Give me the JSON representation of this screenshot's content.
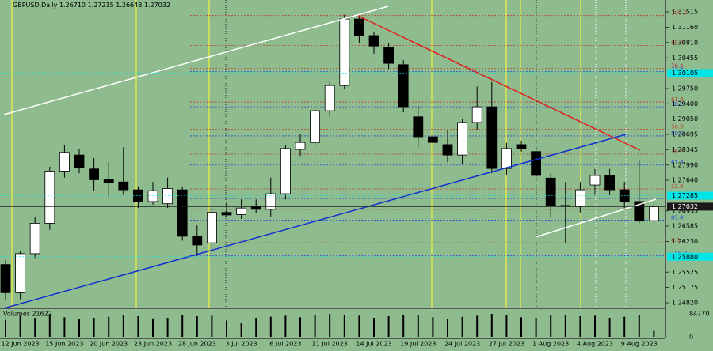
{
  "chart_data": {
    "type": "candlestick",
    "title": "GBPUSD,Daily",
    "header_ohlc": [
      "1.26710",
      "1.27215",
      "1.26648",
      "1.27032"
    ],
    "categories": [
      null,
      "12 Jun 2023",
      null,
      null,
      "15 Jun 2023",
      null,
      null,
      "20 Jun 2023",
      null,
      null,
      "23 Jun 2023",
      null,
      null,
      "28 Jun 2023",
      null,
      null,
      "3 Jul 2023",
      null,
      null,
      "6 Jul 2023",
      null,
      null,
      "11 Jul 2023",
      null,
      null,
      "14 Jul 2023",
      null,
      null,
      "19 Jul 2023",
      null,
      null,
      "24 Jul 2023",
      null,
      null,
      "27 Jul 2023",
      null,
      null,
      "1 Aug 2023",
      null,
      null,
      "4 Aug 2023",
      null,
      null,
      "9 Aug 2023",
      null
    ],
    "open": [
      1.257,
      1.2505,
      1.2595,
      1.2665,
      1.2785,
      1.2822,
      1.279,
      1.2765,
      1.276,
      1.2742,
      1.2715,
      1.271,
      1.2742,
      1.2635,
      1.262,
      1.269,
      1.2685,
      1.2705,
      1.2697,
      1.2733,
      1.2835,
      1.2851,
      1.2924,
      1.2982,
      1.3135,
      1.3097,
      1.307,
      1.303,
      1.291,
      1.2864,
      1.2846,
      1.2822,
      1.2897,
      1.2933,
      1.2791,
      1.2846,
      1.283,
      1.2769,
      1.2706,
      1.2704,
      1.2753,
      1.2775,
      1.2742,
      1.2715,
      1.2671
    ],
    "high": [
      1.258,
      1.26,
      1.268,
      1.2795,
      1.2845,
      1.2835,
      1.2815,
      1.2805,
      1.284,
      1.275,
      1.276,
      1.277,
      1.2748,
      1.266,
      1.27,
      1.2715,
      1.272,
      1.272,
      1.277,
      1.2845,
      1.287,
      1.2935,
      1.299,
      1.3145,
      1.3143,
      1.3105,
      1.308,
      1.304,
      1.2935,
      1.29,
      1.288,
      1.2905,
      1.298,
      1.299,
      1.285,
      1.2855,
      1.284,
      1.278,
      1.276,
      1.276,
      1.279,
      1.279,
      1.276,
      1.281,
      1.27215
    ],
    "low": [
      1.249,
      1.249,
      1.2585,
      1.265,
      1.277,
      1.278,
      1.274,
      1.2725,
      1.273,
      1.27,
      1.2708,
      1.27,
      1.2625,
      1.259,
      1.259,
      1.268,
      1.2675,
      1.2688,
      1.268,
      1.272,
      1.282,
      1.2835,
      1.291,
      1.2975,
      1.308,
      1.3055,
      1.302,
      1.292,
      1.284,
      1.283,
      1.2805,
      1.28,
      1.288,
      1.278,
      1.2775,
      1.283,
      1.277,
      1.268,
      1.262,
      1.269,
      1.273,
      1.273,
      1.27,
      1.2665,
      1.26648
    ],
    "close": [
      1.2505,
      1.2595,
      1.2665,
      1.2785,
      1.2828,
      1.2792,
      1.2765,
      1.2758,
      1.2742,
      1.2715,
      1.274,
      1.2745,
      1.2635,
      1.2615,
      1.269,
      1.2684,
      1.27,
      1.2697,
      1.2733,
      1.2837,
      1.2851,
      1.2924,
      1.2982,
      1.3135,
      1.3097,
      1.3073,
      1.3033,
      1.2933,
      1.2864,
      1.2851,
      1.2822,
      1.2897,
      1.2933,
      1.2791,
      1.2837,
      1.2837,
      1.2775,
      1.2706,
      1.2704,
      1.2742,
      1.2775,
      1.2742,
      1.2715,
      1.267,
      1.27032
    ],
    "ylim": [
      1.24693,
      1.31788
    ],
    "yticks": [
      {
        "value": 1.31515,
        "label": "1.31515"
      },
      {
        "value": 1.3116,
        "label": "1.31160"
      },
      {
        "value": 1.3081,
        "label": "1.30810"
      },
      {
        "value": 1.30455,
        "label": "1.30455"
      },
      {
        "value": 1.2975,
        "label": "1.29750"
      },
      {
        "value": 1.294,
        "label": "1.29400"
      },
      {
        "value": 1.2905,
        "label": "1.29050"
      },
      {
        "value": 1.28695,
        "label": "1.28695"
      },
      {
        "value": 1.28345,
        "label": "1.28345"
      },
      {
        "value": 1.2799,
        "label": "1.27990"
      },
      {
        "value": 1.2764,
        "label": "1.27640"
      },
      {
        "value": 1.26935,
        "label": "1.26935"
      },
      {
        "value": 1.26585,
        "label": "1.26585"
      },
      {
        "value": 1.2623,
        "label": "1.26230"
      },
      {
        "value": 1.25525,
        "label": "1.25525"
      },
      {
        "value": 1.25175,
        "label": "1.25175"
      },
      {
        "value": 1.2482,
        "label": "1.24820"
      }
    ],
    "price_tags": [
      {
        "value": 1.30105,
        "label": "1.30105",
        "color": "#00e5e5"
      },
      {
        "value": 1.27285,
        "label": "1.27285",
        "color": "#00e5e5"
      },
      {
        "value": 1.27032,
        "label": "1.27032",
        "color": "#1a1a1a"
      },
      {
        "value": 1.2588,
        "label": "1.25880",
        "color": "#00e5e5"
      }
    ],
    "fib_levels": [
      {
        "label": "100.0",
        "value": 1.3143,
        "color": "#c0392b"
      },
      {
        "label": "85.4",
        "value": 1.3074,
        "color": "#c0392b"
      },
      {
        "label": "76.4",
        "value": 1.3021,
        "color": "#c0392b"
      },
      {
        "label": "23.6",
        "value": 1.3014,
        "color": "#2a4fd6"
      },
      {
        "label": "61.8",
        "value": 1.2944,
        "color": "#c0392b"
      },
      {
        "label": "38.2",
        "value": 1.2933,
        "color": "#2a4fd6"
      },
      {
        "label": "50.0",
        "value": 1.2881,
        "color": "#c0392b"
      },
      {
        "label": "50.0",
        "value": 1.2866,
        "color": "#2a4fd6"
      },
      {
        "label": "38.2",
        "value": 1.2824,
        "color": "#c0392b"
      },
      {
        "label": "61.8",
        "value": 1.2799,
        "color": "#2a4fd6"
      },
      {
        "label": "23.6",
        "value": 1.2744,
        "color": "#c0392b"
      },
      {
        "label": "76.4",
        "value": 1.2722,
        "color": "#2a4fd6"
      },
      {
        "label": "14.6",
        "value": 1.2697,
        "color": "#c0392b"
      },
      {
        "label": "85.4",
        "value": 1.2672,
        "color": "#2a4fd6"
      },
      {
        "label": "0.0",
        "value": 1.262,
        "color": "#c0392b"
      },
      {
        "label": "100.0",
        "value": 1.259,
        "color": "#2a4fd6"
      }
    ],
    "volume": {
      "title": "Volumes 21622",
      "values": [
        62000,
        78000,
        70000,
        84000,
        72000,
        66000,
        70000,
        74000,
        80000,
        76000,
        68000,
        70000,
        82000,
        76000,
        78000,
        60000,
        52000,
        70000,
        74000,
        78000,
        72000,
        80000,
        84000,
        82000,
        78000,
        70000,
        76000,
        82000,
        80000,
        72000,
        66000,
        74000,
        78000,
        84770,
        80000,
        72000,
        70000,
        80000,
        82000,
        76000,
        78000,
        70000,
        74000,
        80000,
        21622
      ],
      "ylim": [
        0,
        84770
      ],
      "yticks": [
        84770,
        0
      ]
    }
  }
}
